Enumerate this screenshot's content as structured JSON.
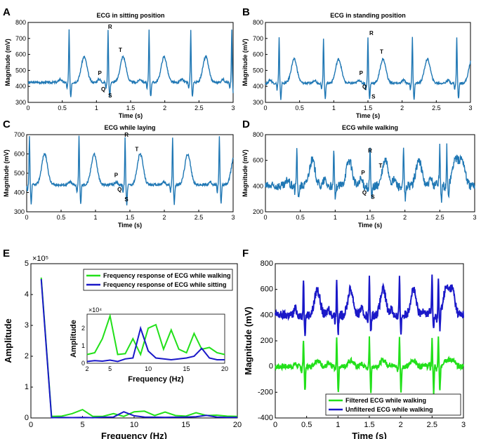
{
  "colors": {
    "ecg": "#1f77b4",
    "green": "#22e01a",
    "blue": "#1a18c8",
    "axis": "#000000"
  },
  "chart_data": [
    {
      "panel": "A",
      "type": "line",
      "title": "ECG in sitting position",
      "xlabel": "Time (s)",
      "ylabel": "Magnitude  (mV)",
      "xlim": [
        0,
        3
      ],
      "ylim": [
        300,
        800
      ],
      "xticks": [
        0,
        0.5,
        1,
        1.5,
        2,
        2.5,
        3
      ],
      "xtick_labels": [
        "0",
        "0.5",
        "1",
        "1.5",
        "2",
        "2.5",
        "3"
      ],
      "yticks": [
        300,
        400,
        500,
        600,
        700,
        800
      ],
      "ytick_labels": [
        "300",
        "400",
        "500",
        "600",
        "700",
        "800"
      ],
      "series": [
        {
          "x_start": 0,
          "x_end": 3,
          "r_peaks": [
            0.6,
            1.17,
            1.77,
            2.38,
            2.98
          ],
          "r_height": 750,
          "s_depth": 335,
          "baseline": 425,
          "t_height": 585,
          "p_height": 445
        }
      ],
      "annotations": [
        {
          "text": "R",
          "x": 1.2,
          "y": 760
        },
        {
          "text": "T",
          "x": 1.35,
          "y": 615
        },
        {
          "text": "P",
          "x": 1.05,
          "y": 470
        },
        {
          "text": "Q",
          "x": 1.1,
          "y": 370
        },
        {
          "text": "S",
          "x": 1.2,
          "y": 330
        }
      ]
    },
    {
      "panel": "B",
      "type": "line",
      "title": "ECG in standing position",
      "xlabel": "Time (s)",
      "ylabel": "Magnitude  (mV)",
      "xlim": [
        0,
        3
      ],
      "ylim": [
        300,
        800
      ],
      "xticks": [
        0,
        0.5,
        1,
        1.5,
        2,
        2.5,
        3
      ],
      "xtick_labels": [
        "0",
        "0.5",
        "1",
        "1.5",
        "2",
        "2.5",
        "3"
      ],
      "yticks": [
        300,
        400,
        500,
        600,
        700,
        800
      ],
      "ytick_labels": [
        "300",
        "400",
        "500",
        "600",
        "700",
        "800"
      ],
      "series": [
        {
          "x_start": 0,
          "x_end": 3,
          "r_peaks": [
            0.2,
            0.85,
            1.5,
            2.15,
            2.8
          ],
          "r_height": 705,
          "s_depth": 320,
          "baseline": 420,
          "t_height": 570,
          "p_height": 440
        }
      ],
      "annotations": [
        {
          "text": "R",
          "x": 1.55,
          "y": 720
        },
        {
          "text": "T",
          "x": 1.7,
          "y": 605
        },
        {
          "text": "P",
          "x": 1.4,
          "y": 470
        },
        {
          "text": "Q",
          "x": 1.45,
          "y": 385
        },
        {
          "text": "S",
          "x": 1.58,
          "y": 325
        }
      ]
    },
    {
      "panel": "C",
      "type": "line",
      "title": "ECG while laying",
      "xlabel": "Time (s)",
      "ylabel": "Magnitude  (mV)",
      "xlim": [
        0,
        3
      ],
      "ylim": [
        300,
        700
      ],
      "xticks": [
        0,
        0.5,
        1,
        1.5,
        2,
        2.5,
        3
      ],
      "xtick_labels": [
        "0",
        "0.5",
        "1",
        "1.5",
        "2",
        "2.5",
        "3"
      ],
      "yticks": [
        300,
        400,
        500,
        600,
        700
      ],
      "ytick_labels": [
        "300",
        "400",
        "500",
        "600",
        "700"
      ],
      "series": [
        {
          "x_start": 0,
          "x_end": 3,
          "r_peaks": [
            0.04,
            0.76,
            1.43,
            2.12,
            2.8
          ],
          "r_height": 690,
          "s_depth": 340,
          "baseline": 440,
          "t_height": 600,
          "p_height": 455
        }
      ],
      "annotations": [
        {
          "text": "R",
          "x": 1.45,
          "y": 690
        },
        {
          "text": "T",
          "x": 1.6,
          "y": 615
        },
        {
          "text": "P",
          "x": 1.3,
          "y": 480
        },
        {
          "text": "Q",
          "x": 1.35,
          "y": 405
        },
        {
          "text": "S",
          "x": 1.45,
          "y": 355
        }
      ]
    },
    {
      "panel": "D",
      "type": "line",
      "title": "ECG while walking",
      "xlabel": "Time (s)",
      "ylabel": "Magnitude  (mV)",
      "xlim": [
        0,
        3
      ],
      "ylim": [
        200,
        800
      ],
      "xticks": [
        0,
        0.5,
        1,
        1.5,
        2,
        2.5,
        3
      ],
      "xtick_labels": [
        "0",
        "0.5",
        "1",
        "1.5",
        "2",
        "2.5",
        "3"
      ],
      "yticks": [
        200,
        400,
        600,
        800
      ],
      "ytick_labels": [
        "200",
        "400",
        "600",
        "800"
      ],
      "series": [
        {
          "x_start": 0,
          "x_end": 3,
          "r_peaks": [
            0.45,
            0.98,
            1.5,
            1.98,
            2.5,
            2.6
          ],
          "r_height": 700,
          "s_depth": 290,
          "baseline": 400,
          "t_height": 600,
          "p_height": 450
        }
      ],
      "annotations": [
        {
          "text": "R",
          "x": 1.5,
          "y": 660
        },
        {
          "text": "T",
          "x": 1.65,
          "y": 545
        },
        {
          "text": "P",
          "x": 1.4,
          "y": 490
        },
        {
          "text": "Q",
          "x": 1.42,
          "y": 335
        },
        {
          "text": "S",
          "x": 1.54,
          "y": 300
        }
      ]
    },
    {
      "panel": "E",
      "type": "line",
      "title": "",
      "xlabel": "Frequency (Hz)",
      "ylabel": "Amplitude",
      "xlim": [
        0,
        20
      ],
      "ylim": [
        0,
        500000
      ],
      "exponent_label": "×10⁵",
      "xticks": [
        0,
        5,
        10,
        15,
        20
      ],
      "xtick_labels": [
        "0",
        "5",
        "10",
        "15",
        "20"
      ],
      "yticks": [
        0,
        100000,
        200000,
        300000,
        400000,
        500000
      ],
      "ytick_labels": [
        "0",
        "1",
        "2",
        "3",
        "4",
        "5"
      ],
      "legend": "top-right",
      "series": [
        {
          "name": "Frequency response of ECG while walking",
          "color": "green",
          "x": [
            1,
            2,
            3,
            4,
            5,
            6,
            7,
            8,
            9,
            10,
            11,
            12,
            13,
            14,
            15,
            16,
            17,
            18,
            19,
            20
          ],
          "y": [
            455000,
            5000,
            6000,
            14000,
            27000,
            5000,
            5500,
            14000,
            5000,
            20000,
            22000,
            8000,
            19000,
            8000,
            6000,
            17000,
            8000,
            9000,
            6000,
            5000
          ]
        },
        {
          "name": "Frequency response of ECG while sitting",
          "color": "blue",
          "x": [
            1,
            2,
            3,
            4,
            5,
            6,
            7,
            8,
            9,
            10,
            11,
            12,
            13,
            14,
            15,
            16,
            17,
            18,
            19,
            20
          ],
          "y": [
            450000,
            1000,
            1500,
            1200,
            1800,
            1000,
            2500,
            3000,
            20000,
            7000,
            3000,
            2500,
            2000,
            2500,
            3000,
            4000,
            8500,
            3000,
            2000,
            2000
          ]
        }
      ],
      "inset": {
        "xlabel": "Frequency (Hz)",
        "ylabel": "Amplitude",
        "exponent_label": "×10⁴",
        "xlim": [
          2,
          20
        ],
        "ylim": [
          0,
          28000
        ],
        "xticks": [
          2,
          5,
          10,
          15,
          20
        ],
        "xtick_labels": [
          "2",
          "5",
          "10",
          "15",
          "20"
        ],
        "yticks": [
          0,
          10000,
          20000
        ],
        "ytick_labels": [
          "0",
          "1",
          "2"
        ]
      }
    },
    {
      "panel": "F",
      "type": "line",
      "title": "",
      "xlabel": "Time (s)",
      "ylabel": "Magnitude (mV)",
      "xlim": [
        0,
        3
      ],
      "ylim": [
        -400,
        800
      ],
      "xticks": [
        0,
        0.5,
        1,
        1.5,
        2,
        2.5,
        3
      ],
      "xtick_labels": [
        "0",
        "0.5",
        "1",
        "1.5",
        "2",
        "2.5",
        "3"
      ],
      "yticks": [
        -400,
        -200,
        0,
        200,
        400,
        600,
        800
      ],
      "ytick_labels": [
        "-400",
        "-200",
        "0",
        "200",
        "400",
        "600",
        "800"
      ],
      "legend": "bottom-right",
      "series": [
        {
          "name": "Filtered ECG while walking",
          "color": "green",
          "baseline": 0,
          "r_peaks": [
            0.45,
            0.98,
            1.5,
            1.98,
            2.5,
            2.6
          ],
          "r_height": 220,
          "s_depth": -200
        },
        {
          "name": "Unfiltered ECG while walking",
          "color": "blue",
          "baseline": 400,
          "r_peaks": [
            0.45,
            0.98,
            1.5,
            1.98,
            2.5,
            2.6
          ],
          "r_height": 700,
          "s_depth": 270
        }
      ]
    }
  ],
  "panel_labels": [
    "A",
    "B",
    "C",
    "D",
    "E",
    "F"
  ]
}
